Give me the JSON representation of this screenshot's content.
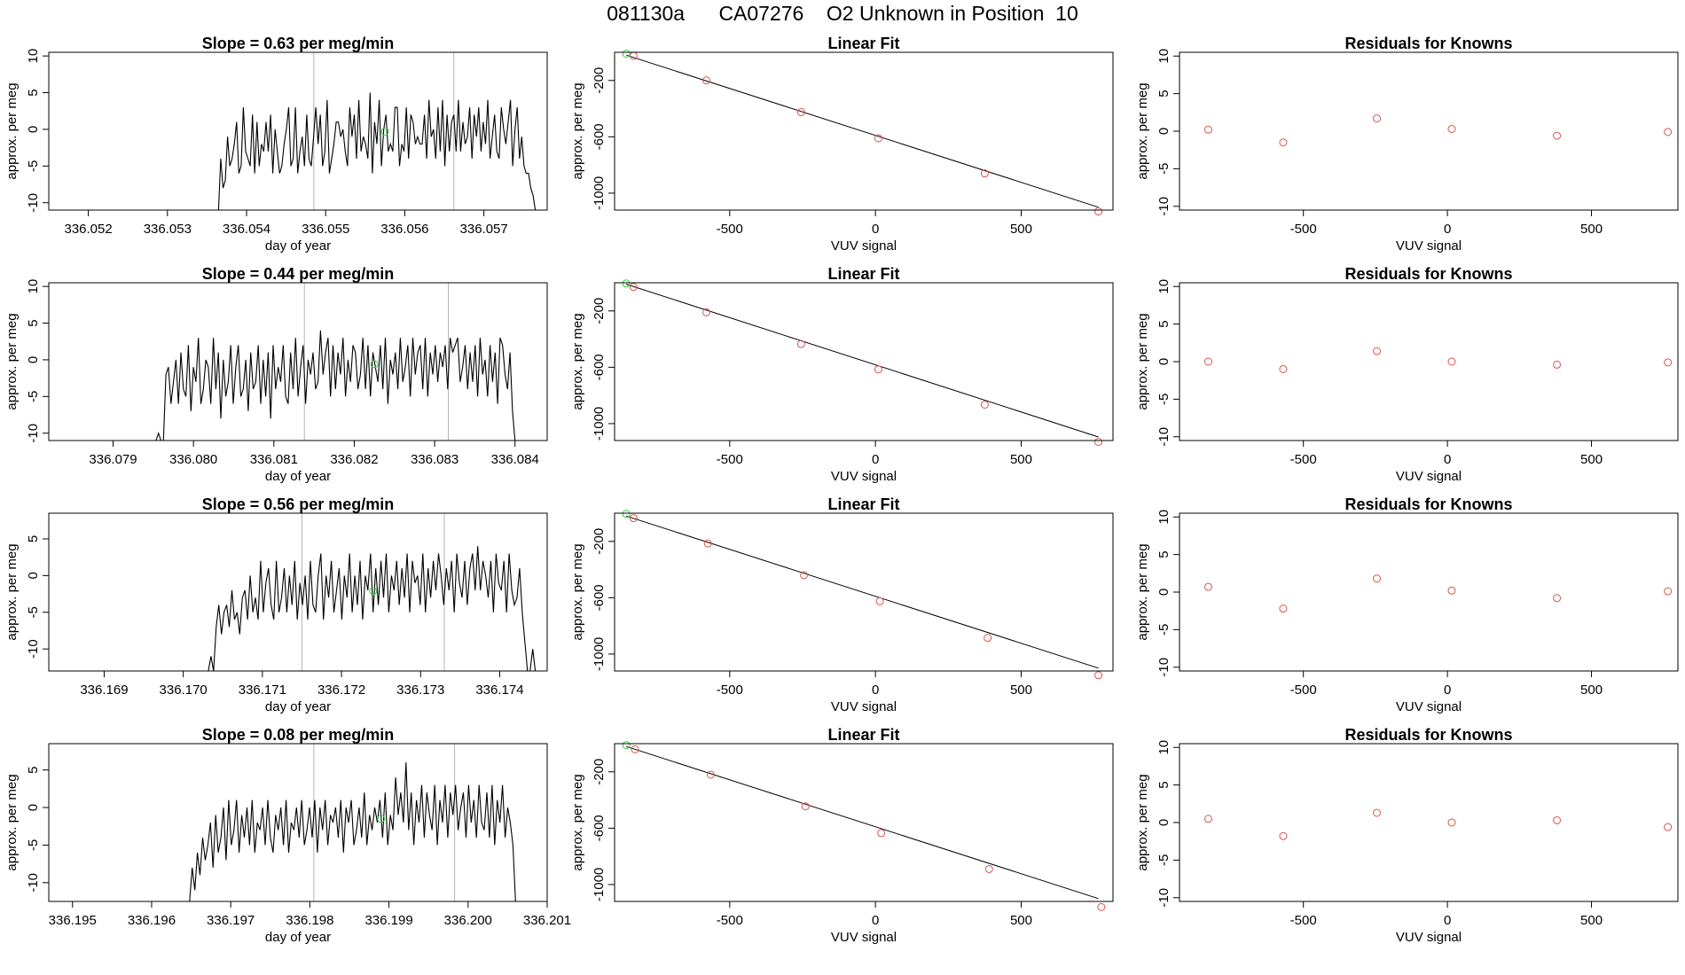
{
  "header": {
    "run_id": "081130a",
    "tank": "CA07276",
    "description": "O2 Unknown in Position  10"
  },
  "colors": {
    "line": "#000000",
    "known": "#d9534f",
    "unknown": "#2ecc40",
    "vline": "#b5b5b5",
    "frame": "#000000"
  },
  "chart_data": [
    {
      "type": "line",
      "title_prefix": "Slope = ",
      "slope": "0.63",
      "title_suffix": "per meg/min",
      "xlabel": "day of year",
      "ylabel": "approx. per meg",
      "xlim": [
        336.0515,
        336.0578
      ],
      "ylim": [
        -11,
        10.5
      ],
      "xticks": [
        "336.052",
        "336.053",
        "336.054",
        "336.055",
        "336.056",
        "336.057"
      ],
      "yticks": [
        "10",
        "5",
        "0",
        "-5",
        "-10"
      ],
      "vlines": [
        336.05485,
        336.05662
      ],
      "signal_start": 336.05305,
      "signal_end": 336.05765,
      "unknown_point": [
        336.05575,
        -0.3
      ],
      "values": [
        -11,
        -11,
        -11,
        -11,
        -11,
        -11,
        -11,
        -11,
        -11,
        -11,
        -11,
        -11,
        -11,
        -11,
        -11,
        -11,
        -11,
        -11,
        -11,
        -11,
        -11,
        -11,
        -11,
        -11,
        -11,
        -11,
        -11,
        -11,
        -11,
        -11,
        -11,
        -11,
        -11,
        -11,
        -11,
        -11,
        -11,
        -11,
        -11,
        -11,
        -11,
        -11,
        -11,
        -11,
        -11,
        -11,
        -11,
        -11,
        -11,
        -11,
        -11,
        -11,
        -11,
        -11,
        -11,
        -11,
        -11,
        -11,
        -11,
        -11,
        -11,
        -11,
        -11,
        -11,
        -11,
        -11,
        -11,
        -11,
        -11,
        -11,
        -11,
        -11,
        -11,
        -11,
        -11,
        -11,
        -4,
        -8,
        -7,
        -1,
        -5,
        -4,
        -2,
        1,
        -6,
        -5,
        3,
        -3,
        -4,
        -5,
        2,
        -6,
        1,
        -5,
        -2,
        -3,
        1,
        -3,
        2,
        -6,
        0,
        -3,
        -6,
        -5,
        -2,
        0,
        3,
        -5,
        -4,
        3,
        -6,
        -3,
        -1,
        -5,
        2,
        -4,
        -5,
        -1,
        3,
        -2,
        2,
        -5,
        -3,
        4,
        -6,
        -4,
        -2,
        1,
        1,
        -1,
        0,
        -3,
        -5,
        3,
        -1,
        2,
        -4,
        4,
        -3,
        -1,
        -2,
        -4,
        5,
        -6,
        1,
        -2,
        4,
        -5,
        0,
        2,
        -3,
        -2,
        -3,
        3,
        3,
        -5,
        -2,
        -3,
        3,
        -4,
        2,
        1,
        -2,
        -1,
        -2,
        -2,
        2,
        -4,
        4,
        -1,
        0,
        -4,
        3,
        -3,
        4,
        -5,
        2,
        -3,
        1,
        2,
        -3,
        4,
        -3,
        1,
        -2,
        -1,
        3,
        -4,
        2,
        -1,
        3,
        -3,
        1,
        -2,
        4,
        -4,
        -1,
        2,
        -3,
        -4,
        3,
        0,
        -2,
        1,
        4,
        -5,
        0,
        3,
        -4,
        -1,
        -5,
        -6,
        -6,
        -8,
        -9,
        -11
      ]
    },
    {
      "type": "line",
      "title_prefix": "Slope = ",
      "slope": "0.44",
      "title_suffix": "per meg/min",
      "xlabel": "day of year",
      "ylabel": "approx. per meg",
      "xlim": [
        336.0782,
        336.0844
      ],
      "ylim": [
        -11,
        10.5
      ],
      "xticks": [
        "336.079",
        "336.080",
        "336.081",
        "336.082",
        "336.083",
        "336.084"
      ],
      "yticks": [
        "10",
        "5",
        "0",
        "-5",
        "-10"
      ],
      "vlines": [
        336.08138,
        336.08317
      ],
      "signal_start": 336.0791,
      "signal_end": 336.084,
      "unknown_point": [
        336.08225,
        -0.6
      ],
      "values": [
        -11,
        -11,
        -11,
        -11,
        -11,
        -11,
        -11,
        -11,
        -11,
        -11,
        -11,
        -11,
        -11,
        -11,
        -11,
        -11,
        -11,
        -11,
        -11,
        -11,
        -11,
        -11,
        -11,
        -11,
        -11,
        -11,
        -11,
        -11,
        -11,
        -11,
        -11,
        -11,
        -11,
        -11,
        -11,
        -11,
        -11,
        -11,
        -11,
        -11,
        -11,
        -11,
        -11,
        -11,
        -10,
        -11,
        -11,
        -2,
        -1,
        -6,
        -3,
        0,
        -6,
        1,
        -4,
        -5,
        2,
        -7,
        -1,
        -3,
        3,
        -6,
        -4,
        0,
        -1,
        -6,
        3,
        -4,
        1,
        -8,
        0,
        -5,
        -3,
        2,
        -6,
        -1,
        2,
        -5,
        -4,
        0,
        -7,
        1,
        -4,
        -3,
        2,
        -6,
        0,
        -5,
        1,
        -8,
        2,
        -4,
        -1,
        -3,
        2,
        -5,
        -6,
        1,
        -4,
        3,
        -5,
        -1,
        2,
        -6,
        0,
        -2,
        1,
        -4,
        -3,
        4,
        -2,
        1,
        3,
        -5,
        2,
        -4,
        1,
        -2,
        3,
        -5,
        0,
        -3,
        2,
        1,
        -4,
        -2,
        3,
        -4,
        2,
        -5,
        1,
        -1,
        -3,
        2,
        -4,
        3,
        -6,
        0,
        -2,
        1,
        -4,
        3,
        -3,
        -1,
        2,
        -5,
        3,
        -2,
        1,
        2,
        -4,
        3,
        -5,
        1,
        -2,
        2,
        -3,
        1,
        -1,
        2,
        -4,
        3,
        1,
        2,
        3,
        -3,
        -1,
        2,
        -4,
        1,
        -3,
        2,
        -5,
        3,
        -2,
        0,
        -5,
        2,
        -3,
        1,
        -6,
        3,
        2,
        -2,
        -4,
        1,
        -7,
        -11
      ]
    },
    {
      "type": "line",
      "title_prefix": "Slope = ",
      "slope": "0.56",
      "title_suffix": "per meg/min",
      "xlabel": "day of year",
      "ylabel": "approx. per meg",
      "xlim": [
        336.1683,
        336.1746
      ],
      "ylim": [
        -13,
        8.5
      ],
      "xticks": [
        "336.169",
        "336.170",
        "336.171",
        "336.172",
        "336.173",
        "336.174"
      ],
      "yticks": [
        "5",
        "0",
        "-5",
        "-10"
      ],
      "vlines": [
        336.1715,
        336.1733
      ],
      "signal_start": 336.16945,
      "signal_end": 336.17445,
      "unknown_point": [
        336.1724,
        -2.1
      ],
      "values": [
        -13,
        -13,
        -13,
        -13,
        -13,
        -13,
        -13,
        -13,
        -13,
        -13,
        -13,
        -13,
        -13,
        -13,
        -13,
        -13,
        -13,
        -13,
        -13,
        -13,
        -13,
        -13,
        -13,
        -13,
        -13,
        -13,
        -13,
        -13,
        -13,
        -13,
        -13,
        -13,
        -13,
        -13,
        -13,
        -13,
        -13,
        -13,
        -13,
        -13,
        -13,
        -13,
        -13,
        -13,
        -13,
        -13,
        -13,
        -13,
        -13,
        -13,
        -13,
        -13,
        -13,
        -13,
        -13,
        -13,
        -13,
        -13,
        -13,
        -13,
        -13,
        -13,
        -11,
        -13,
        -7,
        -4,
        -8,
        -5,
        -4,
        -7,
        -2,
        -6,
        -5,
        -8,
        -3,
        -2,
        -6,
        0,
        -5,
        -3,
        -6,
        2,
        -5,
        -1,
        1,
        -4,
        -6,
        2,
        -5,
        -3,
        1,
        -5,
        0,
        -4,
        2,
        -6,
        -1,
        -4,
        0,
        -6,
        2,
        -4,
        -5,
        0,
        3,
        -6,
        0,
        -3,
        2,
        -5,
        -2,
        1,
        -6,
        0,
        -3,
        3,
        -5,
        0,
        -4,
        2,
        -6,
        0,
        -2,
        3,
        -5,
        1,
        -4,
        2,
        -3,
        3,
        -5,
        0,
        -2,
        2,
        -4,
        1,
        -3,
        3,
        -5,
        2,
        -1,
        0,
        -4,
        3,
        -5,
        1,
        -3,
        2,
        -2,
        3,
        0,
        -4,
        1,
        -2,
        2,
        -5,
        3,
        -1,
        -3,
        2,
        -4,
        1,
        3,
        -2,
        4,
        -2,
        2,
        0,
        -3,
        2,
        -5,
        3,
        -1,
        -2,
        2,
        -5,
        3,
        -2,
        -4,
        -3,
        1,
        -5,
        -9,
        -13,
        -13,
        -10,
        -13
      ]
    },
    {
      "type": "line",
      "title_prefix": "Slope = ",
      "slope": "0.08",
      "title_suffix": "per meg/min",
      "xlabel": "day of year",
      "ylabel": "approx. per meg",
      "xlim": [
        336.1947,
        336.201
      ],
      "ylim": [
        -12.5,
        8.5
      ],
      "xticks": [
        "336.195",
        "336.196",
        "336.197",
        "336.198",
        "336.199",
        "336.200",
        "336.201"
      ],
      "yticks": [
        "5",
        "0",
        "-5",
        "-10"
      ],
      "vlines": [
        336.19805,
        336.19983
      ],
      "signal_start": 336.19575,
      "signal_end": 336.2006,
      "unknown_point": [
        336.1989,
        -1.5
      ],
      "values": [
        -12.5,
        -12.5,
        -12.5,
        -12.5,
        -12.5,
        -12.5,
        -12.5,
        -12.5,
        -12.5,
        -12.5,
        -12.5,
        -12.5,
        -12.5,
        -12.5,
        -12.5,
        -12.5,
        -12.5,
        -12.5,
        -12.5,
        -12.5,
        -12.5,
        -12.5,
        -12.5,
        -12.5,
        -12.5,
        -12.5,
        -12.5,
        -12.5,
        -12.5,
        -12.5,
        -12.5,
        -12.5,
        -12.5,
        -12.5,
        -12.5,
        -12.5,
        -12.5,
        -12.5,
        -12.5,
        -12.5,
        -12.5,
        -12.5,
        -12.5,
        -12.5,
        -12.5,
        -12.5,
        -12.5,
        -12.5,
        -12.5,
        -12.5,
        -12.5,
        -12.5,
        -12.5,
        -12.5,
        -12.5,
        -8,
        -11,
        -6,
        -9,
        -4,
        -7,
        -5,
        -2,
        -8,
        -1,
        -6,
        -4,
        0,
        -7,
        1,
        -5,
        -3,
        1,
        -6,
        -1,
        -4,
        0,
        -5,
        1,
        -6,
        -2,
        -3,
        0,
        -5,
        1,
        -4,
        -6,
        -1,
        -3,
        0,
        -5,
        1,
        -6,
        -2,
        -3,
        0,
        -4,
        1,
        -5,
        -3,
        0,
        -4,
        1,
        -6,
        0,
        -3,
        1,
        -5,
        -1,
        -2,
        0,
        -4,
        1,
        -6,
        0,
        -2,
        1,
        -5,
        -3,
        0,
        -4,
        2,
        -5,
        -1,
        -3,
        0,
        -2,
        1,
        -4,
        2,
        -5,
        -1,
        -3,
        4,
        -1,
        2,
        -2,
        6,
        -3,
        2,
        -5,
        1,
        -2,
        3,
        -4,
        2,
        -1,
        -3,
        3,
        -5,
        1,
        -2,
        3,
        -4,
        2,
        -1,
        3,
        -3,
        0,
        2,
        -4,
        3,
        -2,
        1,
        -4,
        3,
        -2,
        -3,
        2,
        -4,
        3,
        -5,
        1,
        -2,
        3,
        -4,
        0,
        -2,
        -5,
        -12.5
      ]
    }
  ],
  "fit_panels": [
    {
      "type": "scatter",
      "title": "Linear Fit",
      "xlabel": "VUV signal",
      "ylabel": "approx. per meg",
      "xlim": [
        -895,
        815
      ],
      "ylim": [
        -1120,
        0
      ],
      "xticks": [
        "-500",
        "0",
        "500"
      ],
      "yticks": [
        "-200",
        "-600",
        "-1000"
      ],
      "line": [
        [
          -855,
          -20
        ],
        [
          765,
          -1100
        ]
      ],
      "known_points": [
        [
          -830,
          -25
        ],
        [
          -580,
          -200
        ],
        [
          -255,
          -425
        ],
        [
          10,
          -610
        ],
        [
          375,
          -860
        ],
        [
          765,
          -1130
        ]
      ],
      "unknown_points": [
        [
          -855,
          -10
        ]
      ]
    },
    {
      "type": "scatter",
      "title": "Linear Fit",
      "xlabel": "VUV signal",
      "ylabel": "approx. per meg",
      "xlim": [
        -895,
        815
      ],
      "ylim": [
        -1120,
        0
      ],
      "xticks": [
        "-500",
        "0",
        "500"
      ],
      "yticks": [
        "-200",
        "-600",
        "-1000"
      ],
      "line": [
        [
          -855,
          -10
        ],
        [
          765,
          -1095
        ]
      ],
      "known_points": [
        [
          -830,
          -30
        ],
        [
          -580,
          -210
        ],
        [
          -255,
          -435
        ],
        [
          10,
          -615
        ],
        [
          375,
          -865
        ],
        [
          765,
          -1130
        ]
      ],
      "unknown_points": [
        [
          -855,
          -5
        ]
      ]
    },
    {
      "type": "scatter",
      "title": "Linear Fit",
      "xlabel": "VUV signal",
      "ylabel": "approx. per meg",
      "xlim": [
        -895,
        815
      ],
      "ylim": [
        -1120,
        0
      ],
      "xticks": [
        "-500",
        "0",
        "500"
      ],
      "yticks": [
        "-200",
        "-600",
        "-1000"
      ],
      "line": [
        [
          -855,
          -20
        ],
        [
          765,
          -1100
        ]
      ],
      "known_points": [
        [
          -830,
          -35
        ],
        [
          -575,
          -215
        ],
        [
          -245,
          -440
        ],
        [
          15,
          -625
        ],
        [
          385,
          -885
        ],
        [
          765,
          -1150
        ]
      ],
      "unknown_points": [
        [
          -855,
          -5
        ]
      ]
    },
    {
      "type": "scatter",
      "title": "Linear Fit",
      "xlabel": "VUV signal",
      "ylabel": "approx. per meg",
      "xlim": [
        -895,
        815
      ],
      "ylim": [
        -1120,
        0
      ],
      "xticks": [
        "-500",
        "0",
        "500"
      ],
      "yticks": [
        "-200",
        "-600",
        "-1000"
      ],
      "line": [
        [
          -855,
          -20
        ],
        [
          765,
          -1100
        ]
      ],
      "known_points": [
        [
          -825,
          -40
        ],
        [
          -565,
          -220
        ],
        [
          -240,
          -445
        ],
        [
          20,
          -635
        ],
        [
          390,
          -890
        ],
        [
          775,
          -1160
        ]
      ],
      "unknown_points": [
        [
          -855,
          -10
        ]
      ]
    }
  ],
  "residual_panels": [
    {
      "type": "scatter",
      "title": "Residuals for Knowns",
      "xlabel": "VUV signal",
      "ylabel": "approx. per meg",
      "xlim": [
        -930,
        800
      ],
      "ylim": [
        -10.5,
        10.5
      ],
      "xticks": [
        "-500",
        "0",
        "500"
      ],
      "yticks": [
        "10",
        "5",
        "0",
        "-5",
        "-10"
      ],
      "points": [
        [
          -830,
          0.2
        ],
        [
          -570,
          -1.5
        ],
        [
          -245,
          1.7
        ],
        [
          15,
          0.3
        ],
        [
          380,
          -0.6
        ],
        [
          765,
          -0.1
        ]
      ]
    },
    {
      "type": "scatter",
      "title": "Residuals for Knowns",
      "xlabel": "VUV signal",
      "ylabel": "approx. per meg",
      "xlim": [
        -930,
        800
      ],
      "ylim": [
        -10.5,
        10.5
      ],
      "xticks": [
        "-500",
        "0",
        "500"
      ],
      "yticks": [
        "10",
        "5",
        "0",
        "-5",
        "-10"
      ],
      "points": [
        [
          -830,
          0.0
        ],
        [
          -570,
          -1.0
        ],
        [
          -245,
          1.4
        ],
        [
          15,
          0.0
        ],
        [
          380,
          -0.4
        ],
        [
          765,
          -0.1
        ]
      ]
    },
    {
      "type": "scatter",
      "title": "Residuals for Knowns",
      "xlabel": "VUV signal",
      "ylabel": "approx. per meg",
      "xlim": [
        -930,
        800
      ],
      "ylim": [
        -10.5,
        10.5
      ],
      "xticks": [
        "-500",
        "0",
        "500"
      ],
      "yticks": [
        "10",
        "5",
        "0",
        "-5",
        "-10"
      ],
      "points": [
        [
          -830,
          0.7
        ],
        [
          -570,
          -2.2
        ],
        [
          -245,
          1.8
        ],
        [
          15,
          0.2
        ],
        [
          380,
          -0.8
        ],
        [
          765,
          0.1
        ]
      ]
    },
    {
      "type": "scatter",
      "title": "Residuals for Knowns",
      "xlabel": "VUV signal",
      "ylabel": "approx. per meg",
      "xlim": [
        -930,
        800
      ],
      "ylim": [
        -10.5,
        10.5
      ],
      "xticks": [
        "-500",
        "0",
        "500"
      ],
      "yticks": [
        "10",
        "5",
        "0",
        "-5",
        "-10"
      ],
      "points": [
        [
          -830,
          0.5
        ],
        [
          -570,
          -1.8
        ],
        [
          -245,
          1.3
        ],
        [
          15,
          0.0
        ],
        [
          380,
          0.3
        ],
        [
          765,
          -0.6
        ]
      ]
    }
  ]
}
